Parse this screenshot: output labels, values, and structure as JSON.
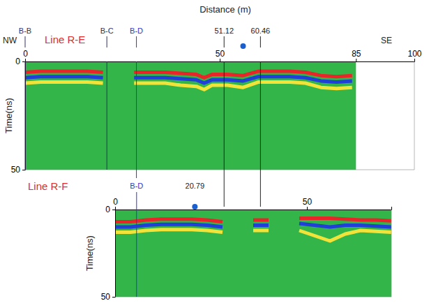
{
  "chart_data": [
    {
      "type": "line",
      "title": "Line R-E",
      "x_label": "Distance (m)",
      "y_label": "Time(ns)",
      "annotations": [
        "NW",
        "SE"
      ],
      "x": [
        0,
        4,
        8,
        12,
        16,
        20,
        24,
        28,
        32,
        36,
        40,
        44,
        46,
        48,
        52,
        56,
        60,
        64,
        68,
        72,
        76,
        80,
        84
      ],
      "series": [
        {
          "color": "#e8262a",
          "values": [
            5,
            4.5,
            4.5,
            4.5,
            4.5,
            5,
            null,
            5,
            5,
            5,
            5.5,
            6,
            7.5,
            6,
            6,
            6.5,
            4.5,
            4.5,
            4.5,
            5,
            6.5,
            7,
            6.5
          ]
        },
        {
          "color": "#1f3fd6",
          "values": [
            7.5,
            7,
            7,
            7,
            7,
            7.5,
            null,
            7.5,
            7.5,
            7.5,
            8,
            8.5,
            10,
            8.5,
            8.5,
            9,
            7,
            7,
            7,
            7.5,
            9,
            9.5,
            9
          ]
        },
        {
          "color": "#f2e33a",
          "values": [
            10,
            9.5,
            9.5,
            9.5,
            9.5,
            10,
            null,
            10,
            10,
            10,
            11,
            11.5,
            13,
            11,
            11,
            12,
            9.5,
            9.5,
            9.5,
            10,
            12,
            12.5,
            12
          ]
        }
      ],
      "xlim": [
        0,
        100
      ],
      "xticks": [
        0,
        50,
        85,
        100
      ],
      "ylim": [
        0,
        50
      ],
      "yticks": [
        0,
        50
      ],
      "section_end": 85,
      "markers": [
        {
          "x": 0,
          "label": "B-B",
          "color": "#30306a"
        },
        {
          "x": 21,
          "label": "B-C",
          "color": "#30306a"
        },
        {
          "x": 28.6,
          "label": "B-D",
          "color": "#3333cc"
        },
        {
          "x": 51.12,
          "label": "51.12",
          "color": "#222222"
        },
        {
          "x": 60.46,
          "label": "60.46",
          "color": "#222222"
        }
      ],
      "points": [
        {
          "x": 56,
          "color": "#1a5fd0"
        }
      ],
      "grid": false
    },
    {
      "type": "line",
      "title": "Line R-F",
      "y_label": "Time(ns)",
      "x": [
        0,
        4,
        8,
        12,
        16,
        20,
        24,
        28,
        32,
        36,
        40,
        44,
        48,
        52,
        56,
        60,
        64,
        68,
        72
      ],
      "series": [
        {
          "color": "#e8262a",
          "values": [
            7,
            7,
            6,
            5.5,
            5.5,
            5.5,
            6,
            7,
            null,
            6,
            6,
            null,
            5,
            5,
            5,
            5.5,
            6,
            6,
            6.5
          ]
        },
        {
          "color": "#1f3fd6",
          "values": [
            10,
            10,
            9,
            8.5,
            8.5,
            8.5,
            9,
            10,
            null,
            9,
            9,
            null,
            8,
            9,
            10,
            9,
            9,
            9.5,
            10
          ]
        },
        {
          "color": "#f2e33a",
          "values": [
            13,
            13,
            12,
            11.5,
            11.5,
            11.5,
            12,
            13,
            null,
            12,
            12,
            null,
            12,
            15,
            18,
            14,
            12,
            12.5,
            13
          ]
        }
      ],
      "xlim": [
        0,
        72
      ],
      "xticks": [
        0,
        50
      ],
      "ylim": [
        0,
        50
      ],
      "yticks": [
        0,
        50
      ],
      "section_end": 72,
      "markers": [
        {
          "x": 5.6,
          "label": "B-D",
          "color": "#3333cc"
        }
      ],
      "points": [
        {
          "x": 20.79,
          "label": "20.79",
          "color": "#1a5fd0"
        }
      ],
      "grid": false
    }
  ]
}
